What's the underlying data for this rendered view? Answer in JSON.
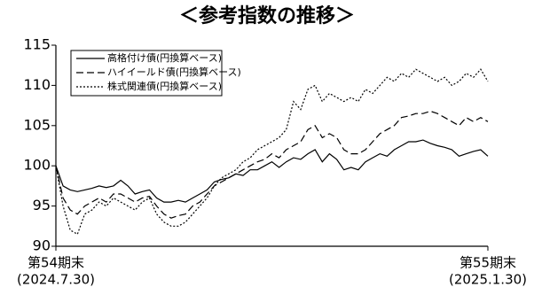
{
  "chart_data": {
    "type": "line",
    "title": "＜参考指数の推移＞",
    "categories": [
      [
        "第54期末",
        "(2024.7.30)"
      ],
      null,
      null,
      null,
      null,
      null,
      null,
      null,
      null,
      null,
      null,
      null,
      null,
      null,
      null,
      null,
      null,
      null,
      null,
      null,
      null,
      null,
      null,
      null,
      null,
      null,
      null,
      null,
      null,
      null,
      null,
      null,
      null,
      null,
      null,
      null,
      null,
      null,
      null,
      null,
      null,
      null,
      null,
      null,
      null,
      null,
      null,
      null,
      null,
      null,
      null,
      null,
      null,
      null,
      null,
      null,
      null,
      null,
      null,
      null,
      [
        "第55期末",
        "(2025.1.30)"
      ]
    ],
    "series": [
      {
        "name": "高格付け債(円換算ベース)",
        "color": "#000000",
        "line_style": "solid",
        "values": [
          100,
          97.5,
          97,
          96.8,
          97,
          97.2,
          97.5,
          97.3,
          97.5,
          98.2,
          97.5,
          96.5,
          96.8,
          97,
          96,
          95.5,
          95.5,
          95.7,
          95.5,
          96,
          96.5,
          97,
          98,
          98.3,
          98.5,
          99,
          98.8,
          99.5,
          99.5,
          100,
          100.5,
          99.8,
          100.5,
          101,
          100.8,
          101.5,
          102,
          100.5,
          101.5,
          100.8,
          99.5,
          99.8,
          99.5,
          100.5,
          101,
          101.5,
          101.2,
          102,
          102.5,
          103,
          103,
          103.2,
          102.8,
          102.5,
          102.3,
          102,
          101.2,
          101.5,
          101.8,
          102,
          101.2
        ]
      },
      {
        "name": "ハイイールド債(円換算ベース)",
        "color": "#000000",
        "line_style": "dashed",
        "values": [
          100,
          96,
          94.5,
          94,
          95,
          95.5,
          96,
          95.5,
          96.5,
          96.5,
          96,
          95.5,
          96,
          96.2,
          95,
          94,
          93.5,
          93.8,
          94,
          95,
          95.5,
          96.5,
          97.5,
          98,
          98.5,
          99,
          99.5,
          100,
          100.5,
          100.8,
          101.5,
          101,
          102,
          102.5,
          103,
          104.5,
          105,
          103.5,
          104,
          103.5,
          102,
          101.5,
          101.5,
          102,
          103,
          104,
          104.5,
          105,
          106,
          106.2,
          106.5,
          106.5,
          106.8,
          106.5,
          106,
          105.5,
          105,
          106,
          105.5,
          106,
          105.5
        ]
      },
      {
        "name": "株式関連債(円換算ベース)",
        "color": "#000000",
        "line_style": "dotted",
        "values": [
          100,
          95,
          92,
          91.5,
          94,
          94.5,
          95.5,
          95,
          96,
          95.5,
          95,
          94.5,
          95.5,
          96,
          94,
          93,
          92.5,
          92.5,
          93,
          94,
          95,
          96,
          97.5,
          98.5,
          99,
          99.5,
          100.5,
          101,
          102,
          102.5,
          103,
          103.5,
          104.5,
          108,
          107,
          109.5,
          110,
          108,
          109,
          108.5,
          108,
          108.5,
          108,
          109.5,
          109,
          110,
          111,
          110.5,
          111.5,
          111,
          112,
          111.5,
          111,
          110.5,
          111,
          110,
          110.5,
          111.5,
          111,
          112,
          110.5
        ]
      }
    ],
    "ylim": [
      90,
      115
    ],
    "yticks": [
      90,
      95,
      100,
      105,
      110,
      115
    ]
  }
}
